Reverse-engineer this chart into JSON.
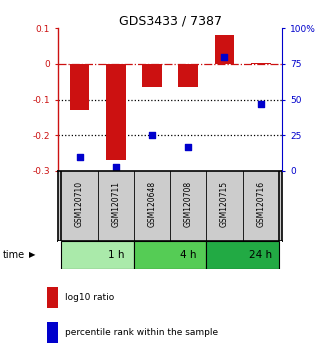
{
  "title": "GDS3433 / 7387",
  "samples": [
    "GSM120710",
    "GSM120711",
    "GSM120648",
    "GSM120708",
    "GSM120715",
    "GSM120716"
  ],
  "log10_ratio": [
    -0.13,
    -0.27,
    -0.065,
    -0.065,
    0.08,
    0.003
  ],
  "percentile_rank": [
    10,
    3,
    25,
    17,
    80,
    47
  ],
  "ylim_left": [
    -0.3,
    0.1
  ],
  "ylim_right": [
    0,
    100
  ],
  "yticks_left": [
    0.1,
    0.0,
    -0.1,
    -0.2,
    -0.3
  ],
  "ytick_labels_left": [
    "0.1",
    "0",
    "-0.1",
    "-0.2",
    "-0.3"
  ],
  "yticks_right": [
    100,
    75,
    50,
    25,
    0
  ],
  "ytick_labels_right": [
    "100%",
    "75",
    "50",
    "25",
    "0"
  ],
  "time_groups": [
    {
      "label": "1 h",
      "start": 0,
      "end": 2
    },
    {
      "label": "4 h",
      "start": 2,
      "end": 4
    },
    {
      "label": "24 h",
      "start": 4,
      "end": 6
    }
  ],
  "time_colors": [
    "#aaeaaa",
    "#55cc55",
    "#22aa44"
  ],
  "bar_color": "#cc1111",
  "dot_color": "#0000cc",
  "dotted_lines": [
    -0.1,
    -0.2
  ],
  "bg_color": "#ffffff",
  "label_bg": "#cccccc",
  "legend_red": "log10 ratio",
  "legend_blue": "percentile rank within the sample"
}
